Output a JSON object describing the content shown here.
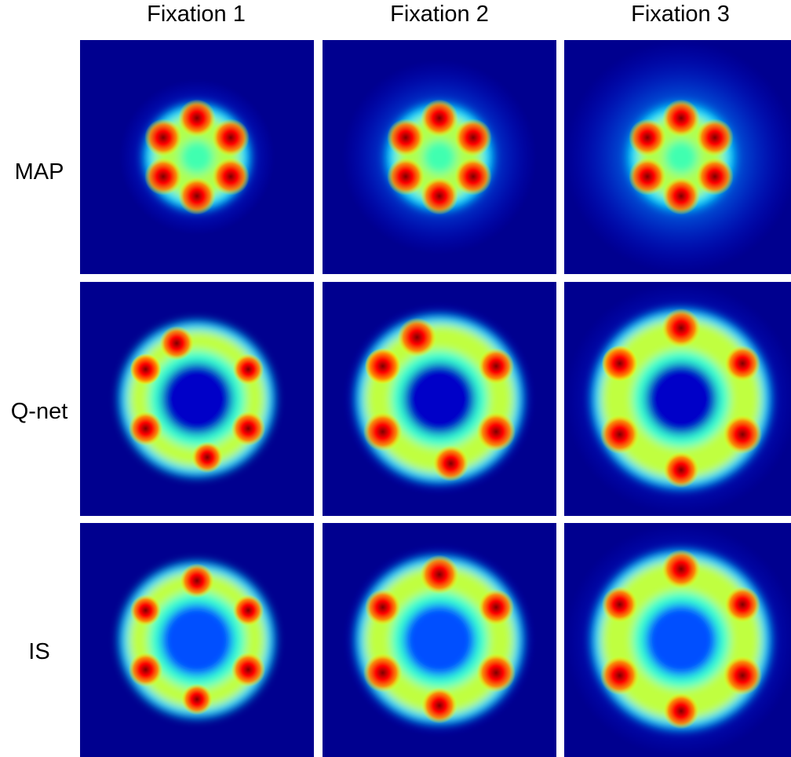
{
  "columns": [
    "Fixation 1",
    "Fixation 2",
    "Fixation 3"
  ],
  "rows": [
    "MAP",
    "Q-net",
    "IS"
  ],
  "colormap": {
    "name": "jet",
    "background": "#00008f",
    "stops": [
      "#00008f",
      "#0000ff",
      "#00ffff",
      "#ffff00",
      "#ff0000",
      "#800000"
    ]
  },
  "panels": [
    {
      "row": "MAP",
      "column": "Fixation 1",
      "pattern": "six-lobe flower",
      "halo": "narrow"
    },
    {
      "row": "MAP",
      "column": "Fixation 2",
      "pattern": "six-lobe flower",
      "halo": "medium"
    },
    {
      "row": "MAP",
      "column": "Fixation 3",
      "pattern": "six-lobe flower",
      "halo": "wide"
    },
    {
      "row": "Q-net",
      "column": "Fixation 1",
      "pattern": "ring with uneven peaks",
      "halo": "narrow"
    },
    {
      "row": "Q-net",
      "column": "Fixation 2",
      "pattern": "ring with peaks",
      "halo": "medium"
    },
    {
      "row": "Q-net",
      "column": "Fixation 3",
      "pattern": "ring with strong peaks",
      "halo": "wide"
    },
    {
      "row": "IS",
      "column": "Fixation 1",
      "pattern": "ring with symmetric peaks",
      "halo": "narrow"
    },
    {
      "row": "IS",
      "column": "Fixation 2",
      "pattern": "ring with symmetric peaks",
      "halo": "medium"
    },
    {
      "row": "IS",
      "column": "Fixation 3",
      "pattern": "ring with symmetric peaks",
      "halo": "wide"
    }
  ]
}
